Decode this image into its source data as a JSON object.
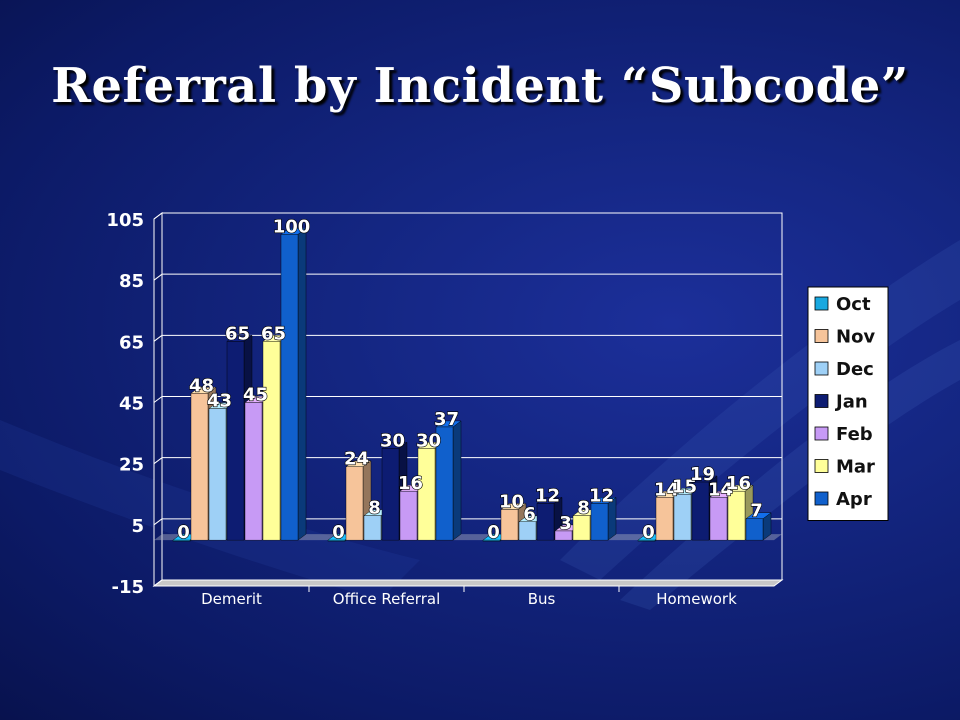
{
  "slide": {
    "title": "Referral by Incident “Subcode”"
  },
  "chart_data": {
    "type": "bar",
    "title": "",
    "xlabel": "",
    "ylabel": "",
    "ylim": [
      -15,
      105
    ],
    "yticks": [
      105,
      85,
      65,
      45,
      25,
      5,
      -15
    ],
    "grid": true,
    "legend_position": "right",
    "categories": [
      "Demerit",
      "Office Referral",
      "Bus",
      "Homework"
    ],
    "series": [
      {
        "name": "Oct",
        "color": "#18a8e0",
        "values": [
          0,
          0,
          0,
          0
        ]
      },
      {
        "name": "Nov",
        "color": "#f6c49a",
        "values": [
          48,
          24,
          10,
          14
        ]
      },
      {
        "name": "Dec",
        "color": "#9ed0f6",
        "values": [
          43,
          8,
          6,
          15
        ]
      },
      {
        "name": "Jan",
        "color": "#0d1c72",
        "values": [
          65,
          30,
          12,
          19
        ]
      },
      {
        "name": "Feb",
        "color": "#c79af5",
        "values": [
          45,
          16,
          3,
          14
        ]
      },
      {
        "name": "Mar",
        "color": "#ffff99",
        "values": [
          65,
          30,
          8,
          16
        ]
      },
      {
        "name": "Apr",
        "color": "#1060cc",
        "values": [
          100,
          37,
          12,
          7
        ]
      }
    ]
  }
}
